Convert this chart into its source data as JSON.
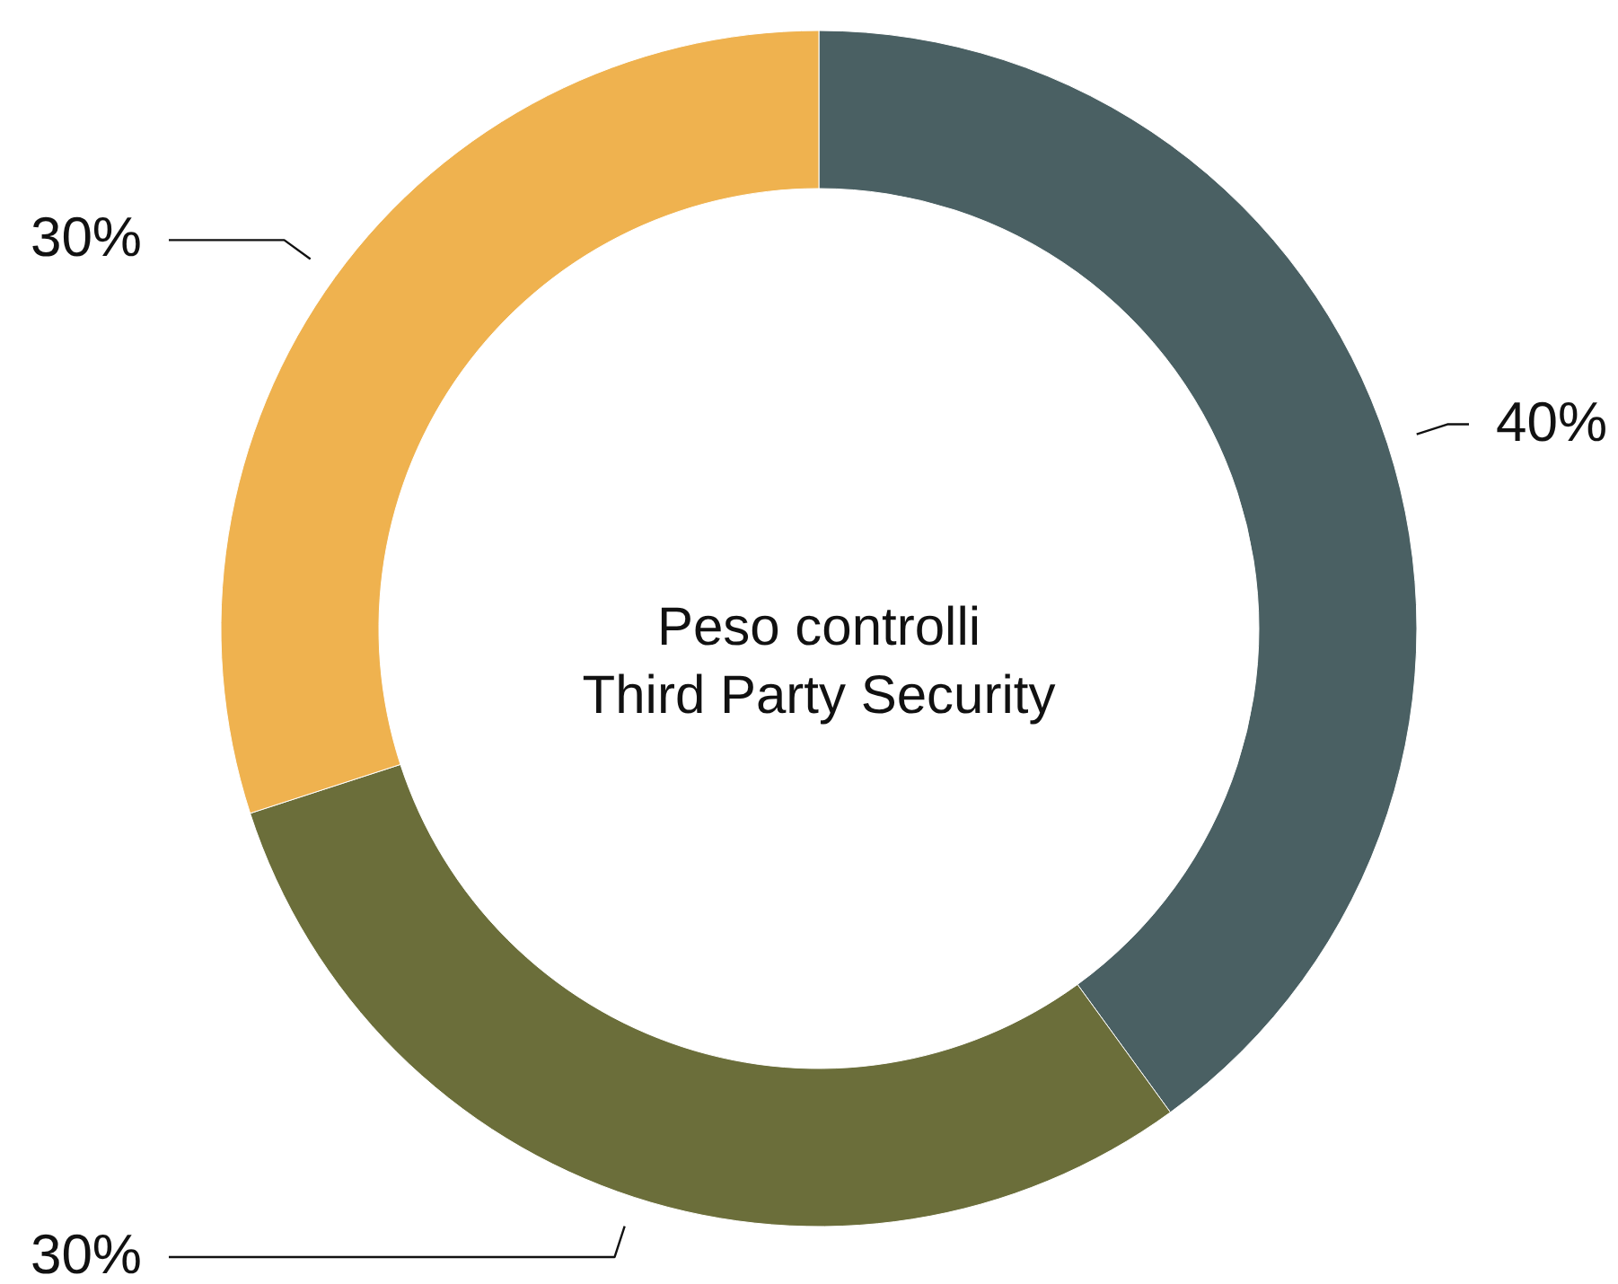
{
  "chart_data": {
    "type": "donut",
    "title": "Peso controlli\nThird Party Security",
    "categories": [
      null,
      null,
      null
    ],
    "values": [
      40,
      30,
      30
    ],
    "colors": [
      "#4a6063",
      "#6b6e3a",
      "#efb24f"
    ],
    "value_labels": [
      "40%",
      "30%",
      "30%"
    ]
  }
}
